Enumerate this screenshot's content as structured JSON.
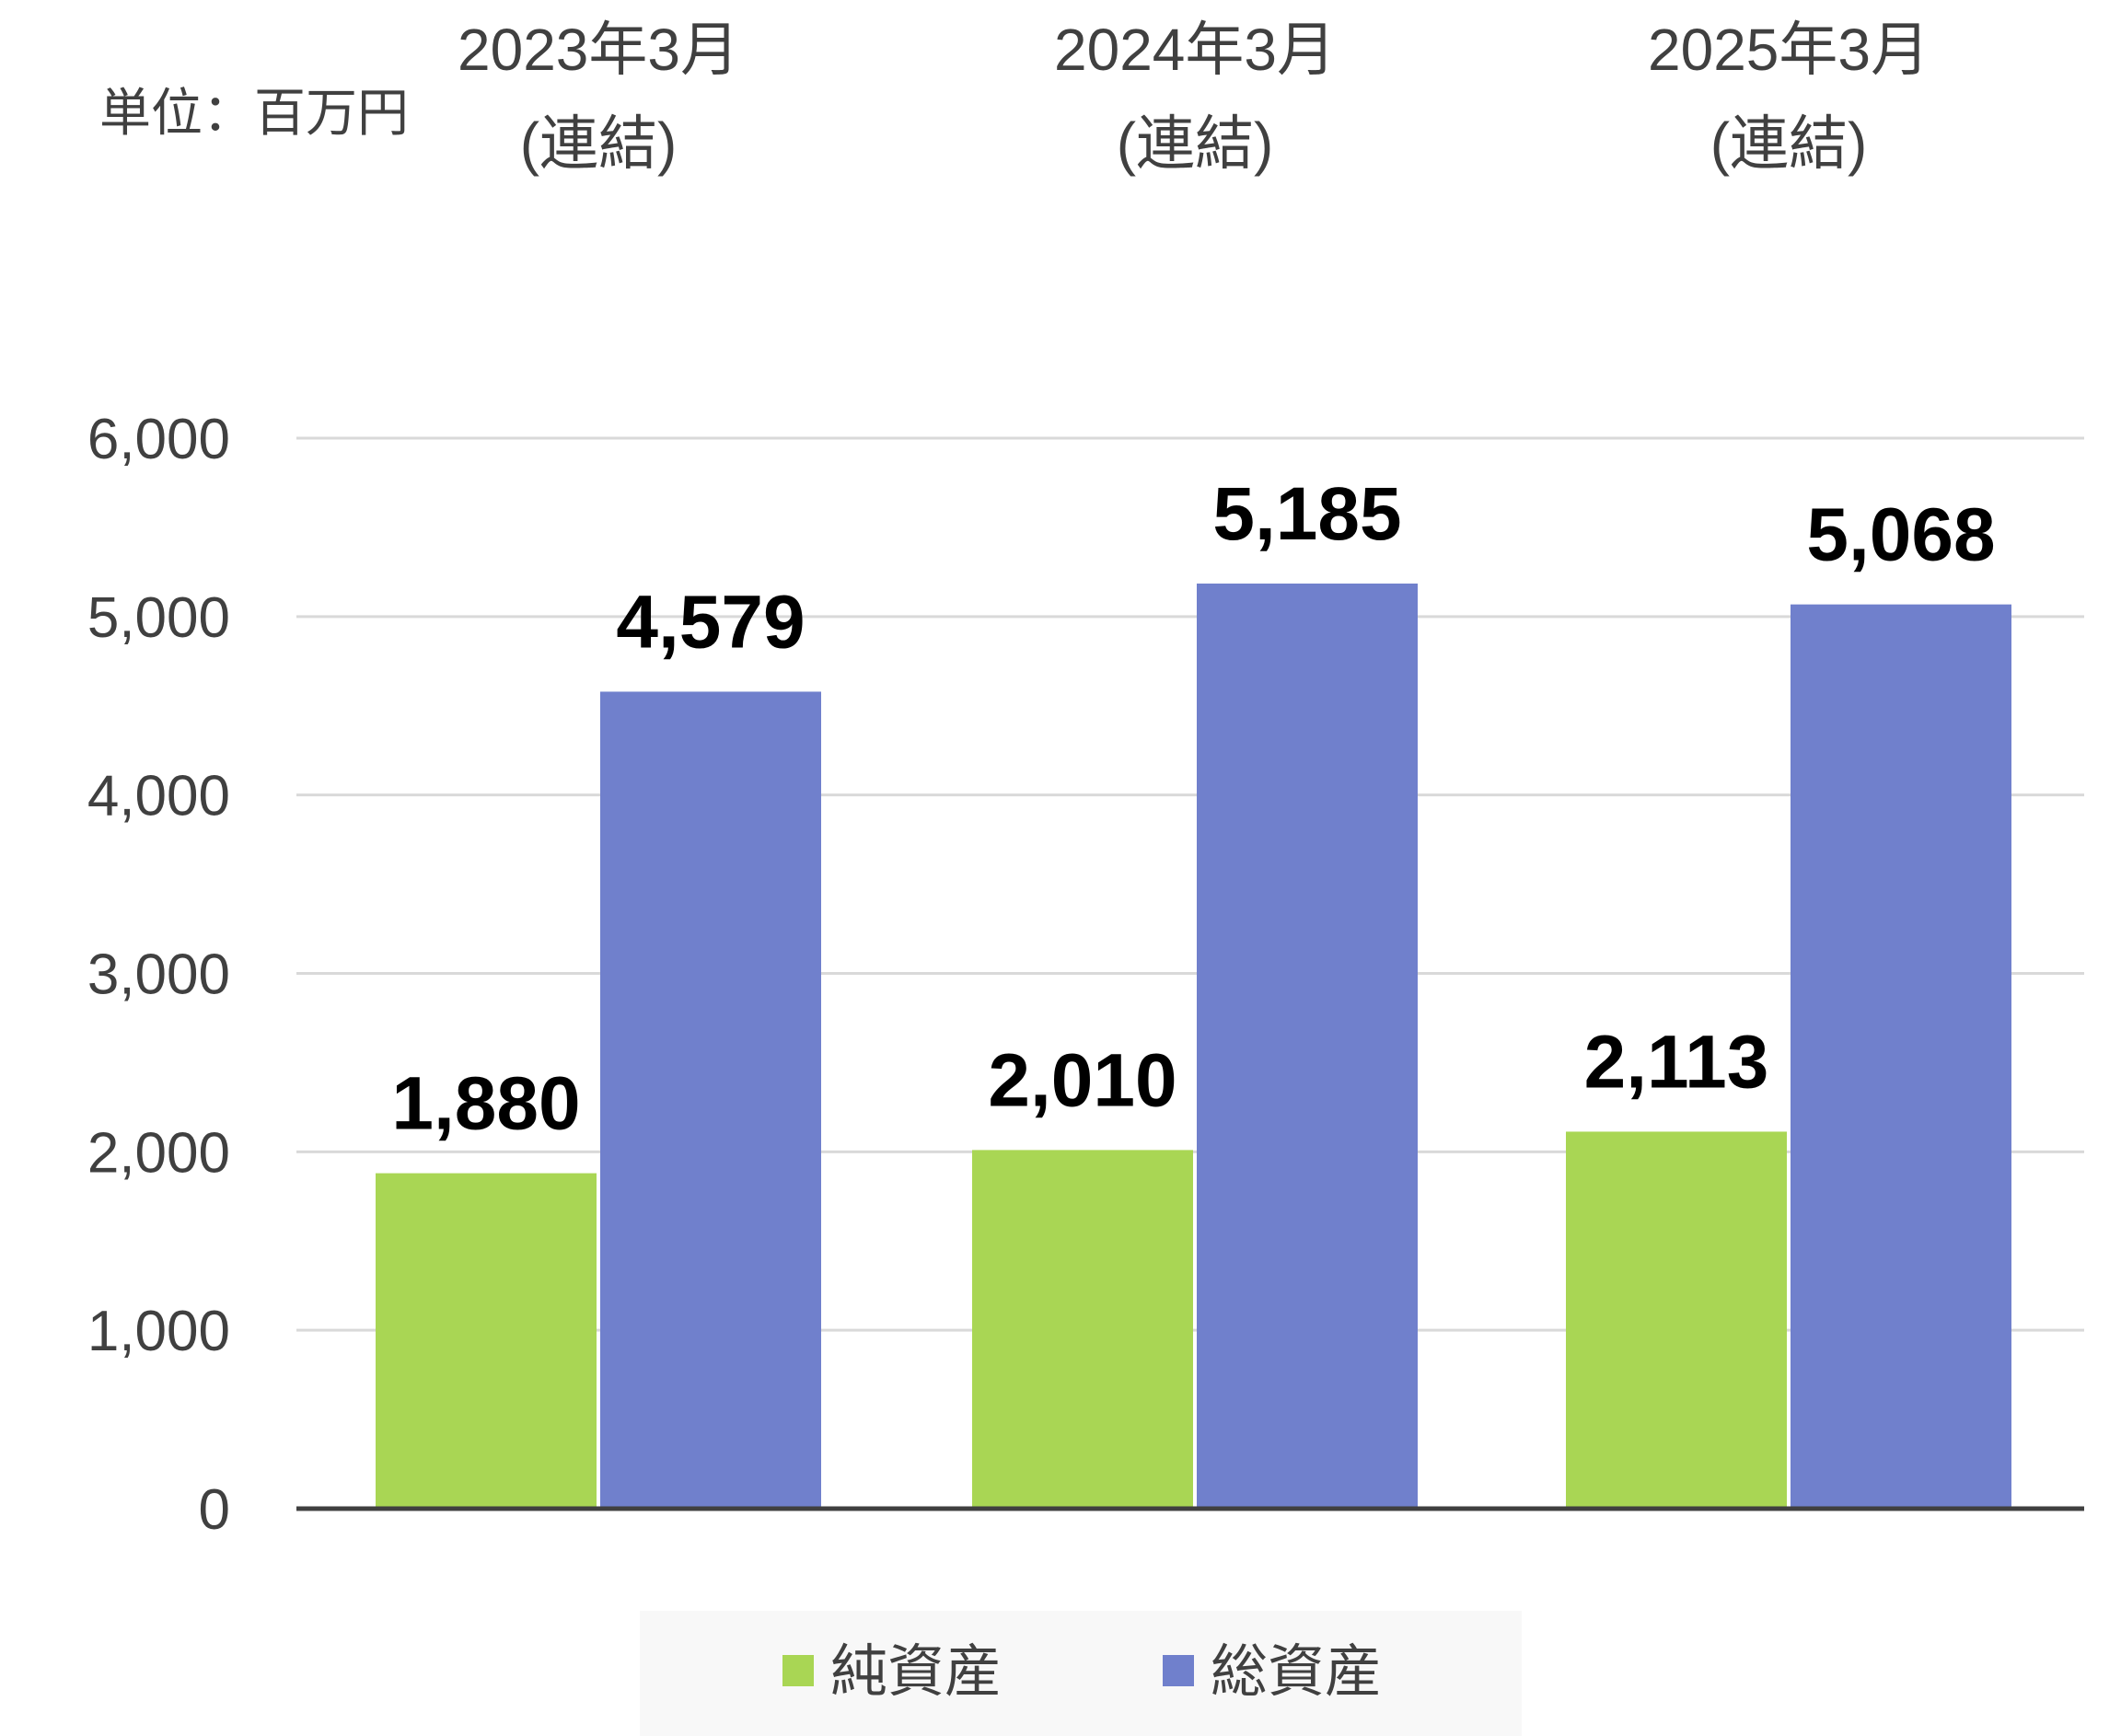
{
  "unit_label": "単位：百万円",
  "chart_data": {
    "type": "bar",
    "categories": [
      {
        "line1": "2023年3月",
        "line2": "(連結)"
      },
      {
        "line1": "2024年3月",
        "line2": "(連結)"
      },
      {
        "line1": "2025年3月",
        "line2": "(連結)"
      }
    ],
    "series": [
      {
        "name": "純資産",
        "values": [
          1880,
          2010,
          2113
        ],
        "labels": [
          "1,880",
          "2,010",
          "2,113"
        ],
        "color": "#A9D654"
      },
      {
        "name": "総資産",
        "values": [
          4579,
          5185,
          5068
        ],
        "labels": [
          "4,579",
          "5,185",
          "5,068"
        ],
        "color": "#7080CC"
      }
    ],
    "ylim": [
      0,
      6000
    ],
    "y_ticks": [
      {
        "value": 0,
        "label": "0"
      },
      {
        "value": 1000,
        "label": "1,000"
      },
      {
        "value": 2000,
        "label": "2,000"
      },
      {
        "value": 3000,
        "label": "3,000"
      },
      {
        "value": 4000,
        "label": "4,000"
      },
      {
        "value": 5000,
        "label": "5,000"
      },
      {
        "value": 6000,
        "label": "6,000"
      }
    ],
    "grid": true,
    "legend": "bottom",
    "category_label_position": "top"
  }
}
